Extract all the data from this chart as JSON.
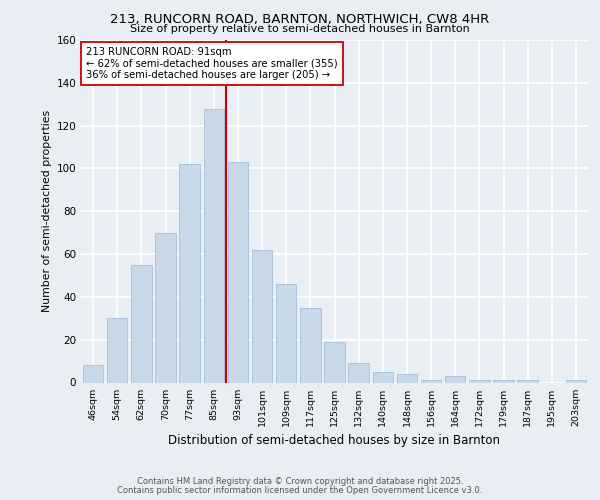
{
  "title1": "213, RUNCORN ROAD, BARNTON, NORTHWICH, CW8 4HR",
  "title2": "Size of property relative to semi-detached houses in Barnton",
  "xlabel": "Distribution of semi-detached houses by size in Barnton",
  "ylabel": "Number of semi-detached properties",
  "categories": [
    "46sqm",
    "54sqm",
    "62sqm",
    "70sqm",
    "77sqm",
    "85sqm",
    "93sqm",
    "101sqm",
    "109sqm",
    "117sqm",
    "125sqm",
    "132sqm",
    "140sqm",
    "148sqm",
    "156sqm",
    "164sqm",
    "172sqm",
    "179sqm",
    "187sqm",
    "195sqm",
    "203sqm"
  ],
  "values": [
    8,
    30,
    55,
    70,
    102,
    128,
    103,
    62,
    46,
    35,
    19,
    9,
    5,
    4,
    1,
    3,
    1,
    1,
    1,
    0,
    1
  ],
  "bar_color": "#c8d8e8",
  "bar_edge_color": "#a8c0d8",
  "property_label": "213 RUNCORN ROAD: 91sqm",
  "pct_smaller": 62,
  "n_smaller": 355,
  "pct_larger": 36,
  "n_larger": 205,
  "vline_x": 5.5,
  "ylim": [
    0,
    160
  ],
  "yticks": [
    0,
    20,
    40,
    60,
    80,
    100,
    120,
    140,
    160
  ],
  "annotation_box_color": "#ffffff",
  "annotation_box_edge": "#cc0000",
  "vline_color": "#cc0000",
  "footer1": "Contains HM Land Registry data © Crown copyright and database right 2025.",
  "footer2": "Contains public sector information licensed under the Open Government Licence v3.0.",
  "bg_color": "#e8eef4",
  "plot_bg_color": "#e8eef4",
  "grid_color": "#ffffff"
}
